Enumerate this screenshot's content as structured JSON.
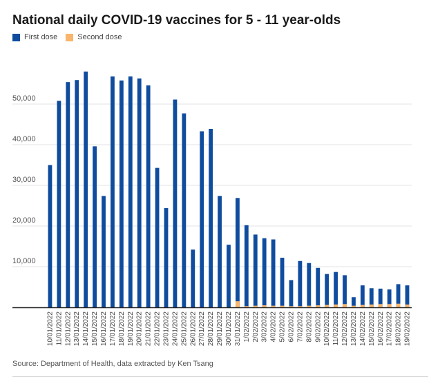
{
  "title": "National daily COVID-19 vaccines for 5 - 11 year-olds",
  "legend": {
    "first_dose_label": "First dose",
    "second_dose_label": "Second dose"
  },
  "colors": {
    "first_dose": "#0f4c9e",
    "second_dose": "#f9b56b",
    "gridline": "#e3e3e3",
    "axis": "#222222"
  },
  "source": "Source: Department of Health, data extracted by Ken Tsang",
  "chart_data": {
    "type": "bar",
    "stacked": true,
    "xlabel": "",
    "ylabel": "",
    "ylim": [
      0,
      60000
    ],
    "yticks": [
      10000,
      20000,
      30000,
      40000,
      50000
    ],
    "ytick_labels": [
      "10,000",
      "20,000",
      "30,000",
      "40,000",
      "50,000"
    ],
    "grid": true,
    "legend_position": "top-left",
    "categories": [
      "10/01/2022",
      "11/01/2022",
      "12/01/2022",
      "13/01/2022",
      "14/01/2022",
      "15/01/2022",
      "16/01/2022",
      "17/01/2022",
      "18/01/2022",
      "19/01/2022",
      "20/01/2022",
      "21/01/2022",
      "22/01/2022",
      "23/01/2022",
      "24/01/2022",
      "25/01/2022",
      "26/01/2022",
      "27/01/2022",
      "28/01/2022",
      "29/01/2022",
      "30/01/2022",
      "31/01/2022",
      "1/02/2022",
      "2/02/2022",
      "3/02/2022",
      "4/02/2022",
      "5/02/2022",
      "6/02/2022",
      "7/02/2022",
      "8/02/2022",
      "9/02/2022",
      "10/02/2022",
      "11/02/2022",
      "12/02/2022",
      "13/02/2022",
      "14/02/2022",
      "15/02/2022",
      "16/02/2022",
      "17/02/2022",
      "18/02/2022",
      "19/02/2022"
    ],
    "tick_labels": [
      "10/01/2022",
      "11/01/2022",
      "12/01/2022",
      "13/01/2022",
      "14/01/2022",
      "15/01/2022",
      "16/01/2022",
      "17/01/2022",
      "18/01/2022",
      "19/01/2022",
      "20/01/2022",
      "21/01/2022",
      "22/01/2022",
      "23/01/2022",
      "24/01/2022",
      "25/01/2022",
      "26/01/2022",
      "27/01/2022",
      "28/01/2022",
      "29/01/2022",
      "30/01/2022",
      "31/01/2022",
      "1/02/2022",
      "2/02/2022",
      "3/02/2022",
      "4/02/2022",
      "5/02/2022",
      "6/02/2022",
      "7/02/2022",
      "8/02/2022",
      "9/02/2022",
      "10/02/2022",
      "11/02/2022",
      "12/02/2022",
      "13/02/2022",
      "14/02/2022",
      "15/02/2022",
      "16/02/2022",
      "17/02/2022",
      "18/02/2022",
      "19/02/2022"
    ],
    "series": [
      {
        "name": "First dose",
        "values": [
          35000,
          50800,
          55400,
          55900,
          58000,
          39600,
          27400,
          56800,
          55800,
          56800,
          56300,
          54600,
          34300,
          24400,
          51100,
          47700,
          14200,
          43300,
          43900,
          27400,
          15400,
          26900,
          20200,
          17900,
          17000,
          16700,
          12200,
          6700,
          11400,
          10900,
          9700,
          8200,
          8700,
          7900,
          2500,
          5400,
          4700,
          4600,
          4400,
          5700,
          5400
        ]
      },
      {
        "name": "Second dose",
        "values": [
          0,
          0,
          0,
          0,
          0,
          0,
          0,
          0,
          0,
          0,
          0,
          0,
          0,
          0,
          0,
          0,
          0,
          0,
          0,
          0,
          0,
          1500,
          300,
          400,
          500,
          400,
          400,
          300,
          300,
          400,
          500,
          600,
          700,
          800,
          400,
          600,
          700,
          800,
          800,
          900,
          700
        ]
      }
    ]
  }
}
